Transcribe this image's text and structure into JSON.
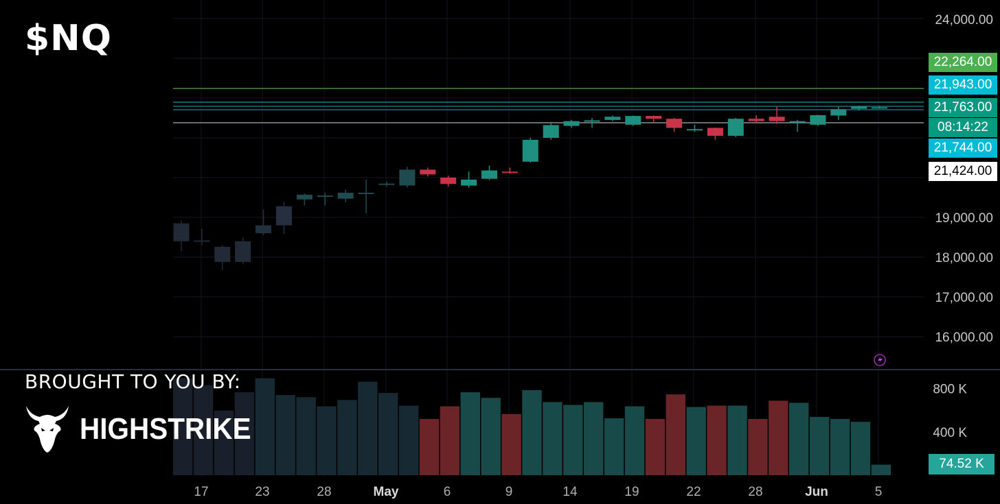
{
  "ticker": "$NQ",
  "sponsor": {
    "intro": "BROUGHT TO YOU BY:",
    "brand": "HIGHSTRIKE",
    "logo_icon": "bull-head-icon"
  },
  "colors": {
    "up": "#26a69a",
    "down": "#ef5350",
    "up_candle": "#1f8f80",
    "down_candle": "#c9344a",
    "bg": "#000000"
  },
  "chart_data": {
    "type": "candlestick",
    "y_axis_ticks": [
      "24,000.00",
      "19,000.00",
      "18,000.00",
      "17,000.00",
      "16,000.00"
    ],
    "y_axis_values": [
      24000,
      19000,
      18000,
      17000,
      16000
    ],
    "x_axis_labels": [
      "17",
      "23",
      "28",
      "May",
      "6",
      "9",
      "14",
      "19",
      "22",
      "28",
      "Jun",
      "5"
    ],
    "price_levels": [
      {
        "label": "22,264.00",
        "bg": "#4caf50",
        "fg": "#ffffff"
      },
      {
        "label": "21,943.00",
        "bg": "#00bcd4",
        "fg": "#ffffff"
      },
      {
        "label": "21,763.00",
        "bg": "#089981",
        "fg": "#ffffff"
      },
      {
        "label": "08:14:22",
        "bg": "#089981",
        "fg": "#ffffff"
      },
      {
        "label": "21,744.00",
        "bg": "#00bcd4",
        "fg": "#ffffff"
      },
      {
        "label": "21,424.00",
        "bg": "#ffffff",
        "fg": "#000000"
      }
    ],
    "horizontal_lines": [
      22264,
      21943,
      21763,
      21744,
      21424
    ],
    "candles": [
      {
        "o": 18850,
        "h": 18920,
        "l": 18150,
        "c": 18400
      },
      {
        "o": 18420,
        "h": 18720,
        "l": 18300,
        "c": 18400
      },
      {
        "o": 18260,
        "h": 18300,
        "l": 17670,
        "c": 17880
      },
      {
        "o": 17880,
        "h": 18490,
        "l": 17820,
        "c": 18400
      },
      {
        "o": 18600,
        "h": 19200,
        "l": 18550,
        "c": 18800
      },
      {
        "o": 18800,
        "h": 19400,
        "l": 18580,
        "c": 19280
      },
      {
        "o": 19450,
        "h": 19600,
        "l": 19300,
        "c": 19570
      },
      {
        "o": 19550,
        "h": 19620,
        "l": 19300,
        "c": 19550
      },
      {
        "o": 19470,
        "h": 19700,
        "l": 19380,
        "c": 19620
      },
      {
        "o": 19620,
        "h": 19950,
        "l": 19100,
        "c": 19620
      },
      {
        "o": 19850,
        "h": 19900,
        "l": 19780,
        "c": 19850
      },
      {
        "o": 19800,
        "h": 20270,
        "l": 19750,
        "c": 20200
      },
      {
        "o": 20200,
        "h": 20250,
        "l": 20030,
        "c": 20080
      },
      {
        "o": 20000,
        "h": 20050,
        "l": 19770,
        "c": 19840
      },
      {
        "o": 19800,
        "h": 20150,
        "l": 19750,
        "c": 19950
      },
      {
        "o": 19970,
        "h": 20300,
        "l": 19940,
        "c": 20180
      },
      {
        "o": 20150,
        "h": 20250,
        "l": 20100,
        "c": 20140
      },
      {
        "o": 20400,
        "h": 21000,
        "l": 20380,
        "c": 20950
      },
      {
        "o": 21000,
        "h": 21400,
        "l": 20950,
        "c": 21320
      },
      {
        "o": 21300,
        "h": 21450,
        "l": 21250,
        "c": 21420
      },
      {
        "o": 21430,
        "h": 21500,
        "l": 21250,
        "c": 21440
      },
      {
        "o": 21450,
        "h": 21560,
        "l": 21420,
        "c": 21530
      },
      {
        "o": 21330,
        "h": 21560,
        "l": 21300,
        "c": 21550
      },
      {
        "o": 21550,
        "h": 21560,
        "l": 21400,
        "c": 21480
      },
      {
        "o": 21480,
        "h": 21500,
        "l": 21150,
        "c": 21250
      },
      {
        "o": 21220,
        "h": 21330,
        "l": 21150,
        "c": 21220
      },
      {
        "o": 21250,
        "h": 21260,
        "l": 20950,
        "c": 21050
      },
      {
        "o": 21050,
        "h": 21500,
        "l": 21020,
        "c": 21480
      },
      {
        "o": 21480,
        "h": 21570,
        "l": 21380,
        "c": 21420
      },
      {
        "o": 21530,
        "h": 21780,
        "l": 21350,
        "c": 21420
      },
      {
        "o": 21410,
        "h": 21450,
        "l": 21150,
        "c": 21420
      },
      {
        "o": 21330,
        "h": 21580,
        "l": 21300,
        "c": 21570
      },
      {
        "o": 21560,
        "h": 21780,
        "l": 21450,
        "c": 21720
      },
      {
        "o": 21730,
        "h": 21810,
        "l": 21690,
        "c": 21790
      },
      {
        "o": 21770,
        "h": 21800,
        "l": 21740,
        "c": 21770
      }
    ],
    "volume_axis_ticks": [
      "800 K",
      "400 K"
    ],
    "volume_axis_values": [
      800,
      400
    ],
    "volume_last_label": "74.52 K",
    "volumes": [
      690,
      640,
      460,
      590,
      690,
      570,
      555,
      490,
      535,
      665,
      585,
      495,
      400,
      490,
      590,
      550,
      435,
      605,
      520,
      500,
      520,
      405,
      490,
      400,
      575,
      485,
      495,
      495,
      400,
      530,
      515,
      415,
      400,
      380,
      75
    ],
    "volume_colors": [
      "neutral",
      "neutral",
      "neutral",
      "neutral",
      "neutral",
      "neutral",
      "neutral",
      "neutral",
      "neutral",
      "neutral",
      "neutral",
      "neutral",
      "down",
      "down",
      "up",
      "up",
      "down",
      "up",
      "up",
      "up",
      "up",
      "up",
      "up",
      "down",
      "down",
      "up",
      "down",
      "up",
      "down",
      "down",
      "up",
      "up",
      "up",
      "up",
      "up"
    ]
  }
}
